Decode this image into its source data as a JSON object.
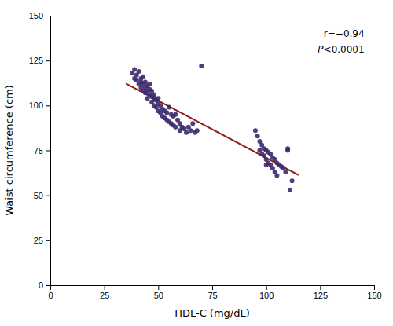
{
  "chart_data": {
    "type": "scatter",
    "x_label": "HDL-C (mg/dL)",
    "y_label": "Waist circumference (cm)",
    "xlim": [
      0,
      150
    ],
    "ylim": [
      0,
      150
    ],
    "xticks": [
      0,
      25,
      50,
      75,
      100,
      125,
      150
    ],
    "yticks": [
      0,
      25,
      50,
      75,
      100,
      125,
      150
    ],
    "grid": false,
    "series": [
      {
        "type": "scatter",
        "color": "#3b2a6e",
        "x": [
          38,
          39,
          39,
          40,
          40,
          41,
          41,
          42,
          42,
          42,
          43,
          43,
          43,
          44,
          44,
          44,
          45,
          45,
          45,
          46,
          46,
          46,
          47,
          47,
          47,
          48,
          48,
          48,
          49,
          49,
          50,
          50,
          50,
          51,
          51,
          52,
          52,
          53,
          53,
          54,
          54,
          55,
          55,
          56,
          56,
          57,
          57,
          58,
          58,
          59,
          60,
          60,
          61,
          62,
          63,
          64,
          65,
          66,
          67,
          68,
          70,
          95,
          96,
          97,
          97,
          98,
          98,
          99,
          99,
          100,
          100,
          100,
          101,
          101,
          102,
          102,
          103,
          103,
          104,
          104,
          105,
          105,
          106,
          107,
          108,
          109,
          110,
          110,
          111,
          112
        ],
        "values": [
          118,
          115,
          120,
          117,
          114,
          119,
          112,
          115,
          110,
          113,
          108,
          112,
          116,
          113,
          110,
          107,
          111,
          108,
          104,
          109,
          106,
          112,
          105,
          102,
          108,
          104,
          100,
          106,
          103,
          99,
          101,
          97,
          104,
          100,
          96,
          98,
          94,
          97,
          93,
          96,
          92,
          99,
          91,
          95,
          90,
          94,
          89,
          95,
          88,
          92,
          90,
          86,
          88,
          87,
          85,
          88,
          86,
          90,
          85,
          86,
          122,
          86,
          83,
          80,
          75,
          78,
          73,
          76,
          72,
          75,
          70,
          67,
          74,
          68,
          73,
          67,
          71,
          65,
          70,
          63,
          68,
          61,
          67,
          66,
          65,
          63,
          76,
          75,
          53,
          58
        ]
      },
      {
        "type": "line",
        "color": "#8b1a1a",
        "x": [
          35,
          115
        ],
        "values": [
          112.216,
          61.293
        ]
      }
    ],
    "annotations": [
      "r=−0.94",
      "P<0.0001"
    ]
  }
}
